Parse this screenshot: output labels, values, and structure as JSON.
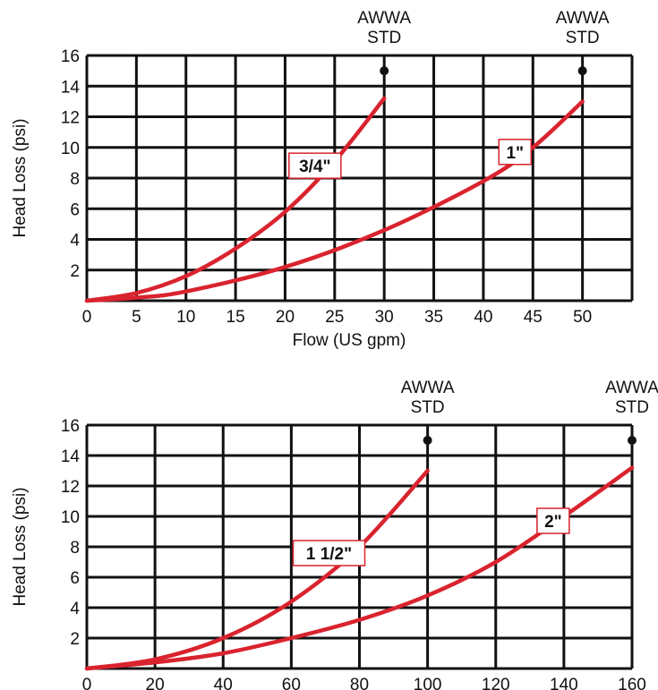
{
  "chart_data": [
    {
      "type": "line",
      "title": "",
      "xlabel": "Flow (US gpm)",
      "ylabel": "Head Loss (psi)",
      "xlim": [
        0,
        55
      ],
      "ylim": [
        0,
        16
      ],
      "xticks": [
        "0",
        "5",
        "10",
        "15",
        "20",
        "25",
        "30",
        "35",
        "40",
        "45",
        "50"
      ],
      "yticks": [
        "2",
        "4",
        "6",
        "8",
        "10",
        "12",
        "14",
        "16"
      ],
      "grid": true,
      "line_color": "#d9232e",
      "series": [
        {
          "name": "3/4\"",
          "x": [
            0,
            5,
            10,
            15,
            20,
            25,
            30
          ],
          "y": [
            0,
            0.5,
            1.6,
            3.4,
            5.8,
            9.1,
            13.2
          ]
        },
        {
          "name": "1\"",
          "x": [
            0,
            5,
            10,
            20,
            30,
            40,
            45,
            50
          ],
          "y": [
            0,
            0.2,
            0.6,
            2.2,
            4.6,
            7.8,
            10.0,
            13.0
          ]
        }
      ],
      "markers": [
        {
          "label": "AWWA STD",
          "x": 30,
          "y": 15
        },
        {
          "label": "AWWA STD",
          "x": 50,
          "y": 15
        }
      ]
    },
    {
      "type": "line",
      "title": "",
      "xlabel": "",
      "ylabel": "Head Loss (psi)",
      "xlim": [
        0,
        160
      ],
      "ylim": [
        0,
        16
      ],
      "xticks": [
        "0",
        "20",
        "40",
        "60",
        "80",
        "100",
        "120",
        "140",
        "160"
      ],
      "yticks": [
        "2",
        "4",
        "6",
        "8",
        "10",
        "12",
        "14",
        "16"
      ],
      "grid": true,
      "line_color": "#d9232e",
      "series": [
        {
          "name": "1 1/2\"",
          "x": [
            0,
            20,
            40,
            60,
            80,
            100
          ],
          "y": [
            0,
            0.6,
            2.0,
            4.4,
            8.0,
            13.0
          ]
        },
        {
          "name": "2\"",
          "x": [
            0,
            20,
            40,
            60,
            80,
            100,
            120,
            140,
            160
          ],
          "y": [
            0,
            0.4,
            1.0,
            2.0,
            3.2,
            4.8,
            7.0,
            10.0,
            13.2
          ]
        }
      ],
      "markers": [
        {
          "label": "AWWA STD",
          "x": 100,
          "y": 15
        },
        {
          "label": "AWWA STD",
          "x": 160,
          "y": 15
        }
      ]
    }
  ]
}
